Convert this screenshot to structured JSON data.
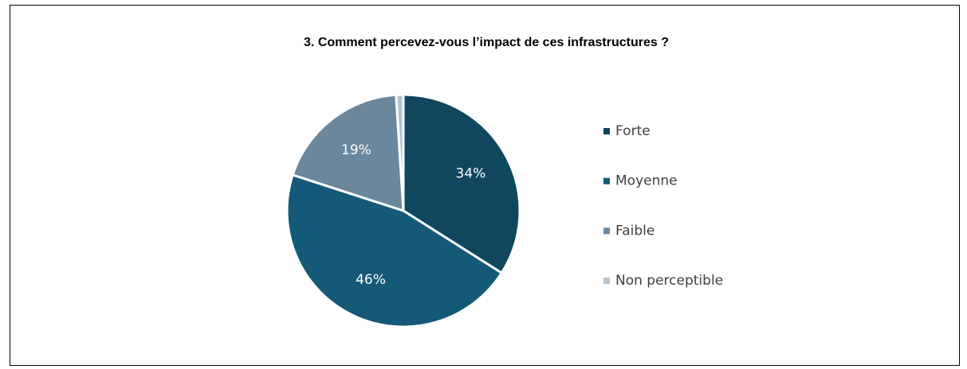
{
  "chart_data": {
    "type": "pie",
    "title": "3. Comment percevez-vous l’impact de ces infrastructures ?",
    "categories": [
      "Forte",
      "Moyenne",
      "Faible",
      "Non perceptible"
    ],
    "values": [
      34,
      46,
      19,
      1
    ],
    "value_labels": [
      "34%",
      "46%",
      "19%",
      null
    ],
    "colors": [
      "#10475f",
      "#145a78",
      "#6b879d",
      "#b4c3d0"
    ],
    "legend": "right"
  }
}
